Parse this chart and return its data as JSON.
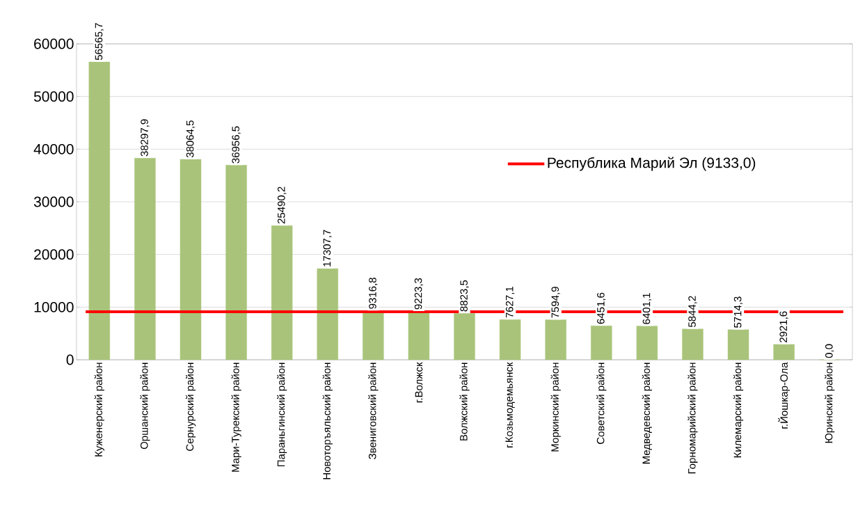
{
  "chart_data": {
    "type": "bar",
    "categories": [
      "Куженерский район",
      "Оршанский район",
      "Сернурский район",
      "Мари-Турекский район",
      "Параньгинский район",
      "Новоторъяльский район",
      "Звениговский район",
      "г.Волжск",
      "Волжский район",
      "г.Козьмодемьянск",
      "Моркинский район",
      "Советский район",
      "Медведевский район",
      "Горномарийский район",
      "Килемарский район",
      "г.Йошкар-Ола",
      "Юринский район"
    ],
    "values": [
      56565.7,
      38297.9,
      38064.5,
      36956.5,
      25490.2,
      17307.7,
      9316.8,
      9223.3,
      8823.5,
      7627.1,
      7594.9,
      6451.6,
      6401.1,
      5844.2,
      5714.3,
      2921.6,
      0.0
    ],
    "value_labels": [
      "56565,7",
      "38297,9",
      "38064,5",
      "36956,5",
      "25490,2",
      "17307,7",
      "9316,8",
      "9223,3",
      "8823,5",
      "7627,1",
      "7594,9",
      "6451,6",
      "6401,1",
      "5844,2",
      "5714,3",
      "2921,6",
      "0,0"
    ],
    "color": "#a9c47a",
    "ylim": [
      0,
      60000
    ],
    "yticks": [
      0,
      10000,
      20000,
      30000,
      40000,
      50000,
      60000
    ],
    "grid": "y",
    "ref_lines": [
      {
        "axis": "y",
        "value": 9133.0,
        "label": "Республика Марий Эл (9133,0)",
        "color": "#ff0000"
      }
    ]
  }
}
